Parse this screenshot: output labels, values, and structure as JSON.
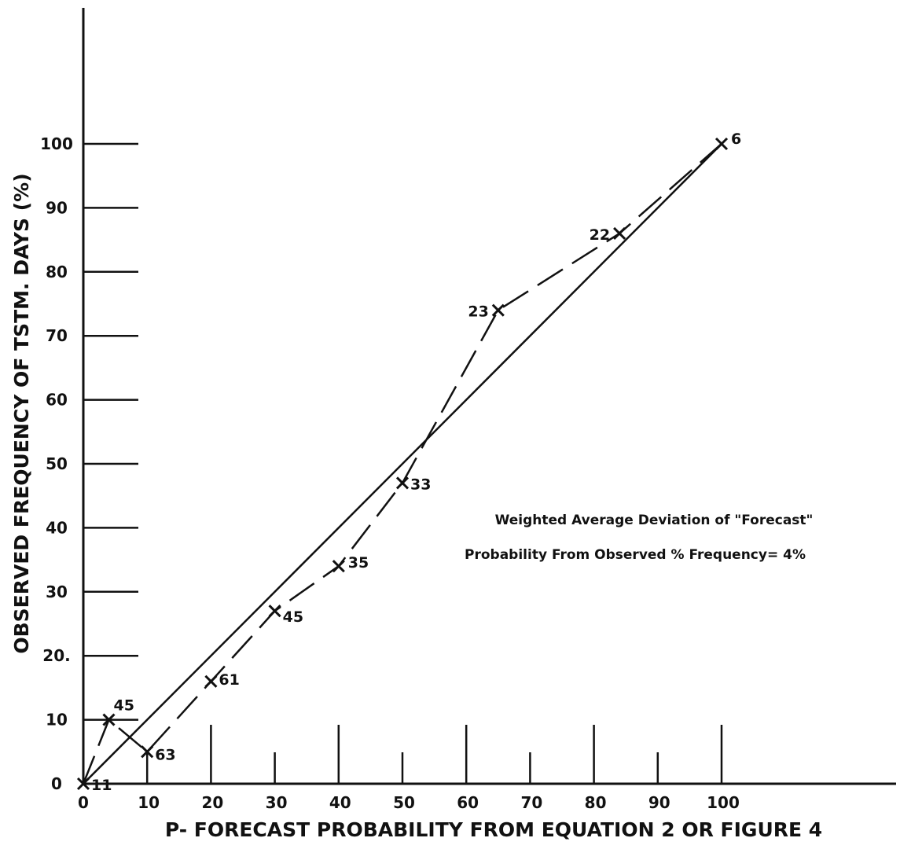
{
  "chart_data": {
    "type": "line",
    "title": "",
    "xlabel": "P- FORECAST PROBABILITY FROM EQUATION 2 OR FIGURE 4",
    "ylabel": "OBSERVED FREQUENCY OF TSTM. DAYS (%)",
    "xlim": [
      0,
      100
    ],
    "ylim": [
      0,
      100
    ],
    "x_ticks": [
      "0",
      "10",
      "20",
      "30",
      "40",
      "50",
      "60",
      "70",
      "80",
      "90",
      "100"
    ],
    "y_ticks": [
      "0",
      "10",
      "20.",
      "30",
      "40",
      "50",
      "60",
      "70",
      "80",
      "90",
      "100"
    ],
    "grid": false,
    "series": [
      {
        "style": "solid",
        "points": [
          [
            0,
            0
          ],
          [
            100,
            100
          ]
        ]
      },
      {
        "style": "dashed",
        "points": [
          {
            "x": 0,
            "y": 0,
            "label": "11"
          },
          {
            "x": 4,
            "y": 10,
            "label": "45"
          },
          {
            "x": 10,
            "y": 5,
            "label": "63"
          },
          {
            "x": 20,
            "y": 16,
            "label": "61"
          },
          {
            "x": 30,
            "y": 27,
            "label": "45"
          },
          {
            "x": 40,
            "y": 34,
            "label": "35"
          },
          {
            "x": 50,
            "y": 47,
            "label": "33"
          },
          {
            "x": 65,
            "y": 74,
            "label": "23"
          },
          {
            "x": 84,
            "y": 86,
            "label": "22"
          },
          {
            "x": 100,
            "y": 100,
            "label": "6"
          }
        ]
      }
    ],
    "annotation": {
      "line1": "Weighted Average Deviation of \"Forecast\"",
      "line2": "Probability From Observed % Frequency= 4%"
    }
  }
}
